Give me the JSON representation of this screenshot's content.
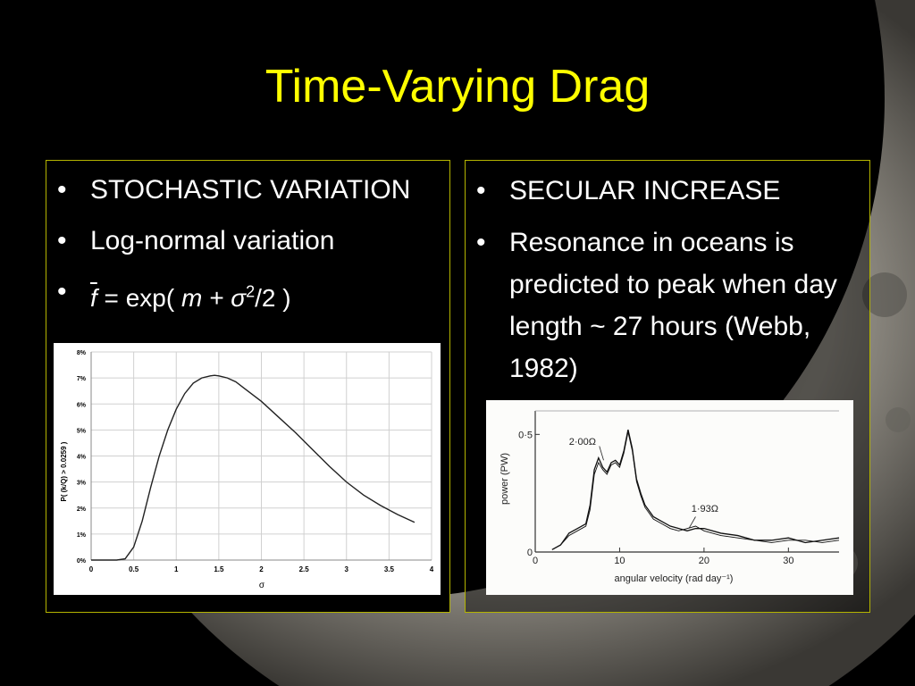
{
  "slide": {
    "title": "Time-Varying Drag",
    "accent_color": "#ffff00"
  },
  "left": {
    "bullets": [
      "STOCHASTIC VARIATION",
      "Log-normal variation"
    ],
    "formula": {
      "f": "f",
      "eq": " = exp( ",
      "m": "m",
      "plus": " + ",
      "sigma": "σ",
      "sq": "2",
      "rest": "/2 )"
    }
  },
  "right": {
    "bullets": [
      "SECULAR INCREASE",
      "Resonance in oceans is predicted to peak when day length ~ 27 hours (Webb, 1982)"
    ]
  },
  "chart_data": [
    {
      "type": "line",
      "xlabel": "σ",
      "ylabel": "P( (k/Q) > 0.0259 )",
      "xlim": [
        0,
        4
      ],
      "ylim": [
        0,
        8
      ],
      "x_ticks": [
        "0",
        "0.5",
        "1",
        "1.5",
        "2",
        "2.5",
        "3",
        "3.5",
        "4"
      ],
      "y_ticks": [
        "0%",
        "1%",
        "2%",
        "3%",
        "4%",
        "5%",
        "6%",
        "7%",
        "8%"
      ],
      "grid": true,
      "series": [
        {
          "x": [
            0,
            0.3,
            0.4,
            0.5,
            0.6,
            0.7,
            0.8,
            0.9,
            1.0,
            1.1,
            1.2,
            1.3,
            1.4,
            1.45,
            1.5,
            1.6,
            1.7,
            1.8,
            1.9,
            2.0,
            2.2,
            2.4,
            2.6,
            2.8,
            3.0,
            3.2,
            3.4,
            3.6,
            3.8
          ],
          "y": [
            0,
            0,
            0.05,
            0.5,
            1.5,
            2.8,
            4.0,
            5.0,
            5.8,
            6.4,
            6.8,
            7.0,
            7.08,
            7.1,
            7.08,
            7.0,
            6.85,
            6.6,
            6.35,
            6.1,
            5.5,
            4.9,
            4.25,
            3.6,
            3.0,
            2.5,
            2.1,
            1.75,
            1.45
          ]
        }
      ]
    },
    {
      "type": "line",
      "xlabel": "angular velocity (rad day⁻¹)",
      "ylabel": "power (PW)",
      "xlim": [
        0,
        36
      ],
      "ylim": [
        0,
        0.6
      ],
      "x_ticks": [
        "0",
        "10",
        "20",
        "30"
      ],
      "y_ticks": [
        "0",
        "0·5"
      ],
      "grid": false,
      "annotations": [
        "2·00Ω",
        "1·93Ω"
      ],
      "series": [
        {
          "name": "2·00Ω",
          "x": [
            2,
            3,
            4,
            5,
            6,
            6.5,
            7,
            7.5,
            8,
            8.5,
            9,
            9.5,
            10,
            10.5,
            11,
            11.5,
            12,
            12.5,
            13,
            14,
            15,
            16,
            17,
            18,
            19,
            20,
            22,
            24,
            26,
            28,
            30,
            32,
            34,
            36
          ],
          "y": [
            0.01,
            0.03,
            0.08,
            0.1,
            0.12,
            0.2,
            0.35,
            0.4,
            0.36,
            0.34,
            0.38,
            0.39,
            0.37,
            0.43,
            0.52,
            0.44,
            0.31,
            0.25,
            0.2,
            0.15,
            0.13,
            0.11,
            0.1,
            0.09,
            0.1,
            0.1,
            0.08,
            0.07,
            0.05,
            0.05,
            0.06,
            0.04,
            0.05,
            0.06
          ]
        },
        {
          "name": "1·93Ω",
          "x": [
            2,
            3,
            4,
            5,
            6,
            6.5,
            7,
            7.5,
            8,
            8.5,
            9,
            9.5,
            10,
            10.5,
            11,
            11.5,
            12,
            12.5,
            13,
            14,
            15,
            16,
            17,
            18,
            19,
            20,
            22,
            24,
            26,
            28,
            30,
            32,
            34,
            36
          ],
          "y": [
            0.01,
            0.03,
            0.07,
            0.09,
            0.11,
            0.18,
            0.33,
            0.38,
            0.35,
            0.33,
            0.37,
            0.38,
            0.36,
            0.42,
            0.51,
            0.43,
            0.3,
            0.24,
            0.19,
            0.14,
            0.12,
            0.1,
            0.09,
            0.1,
            0.11,
            0.09,
            0.07,
            0.06,
            0.05,
            0.04,
            0.05,
            0.05,
            0.04,
            0.05
          ]
        }
      ]
    }
  ]
}
